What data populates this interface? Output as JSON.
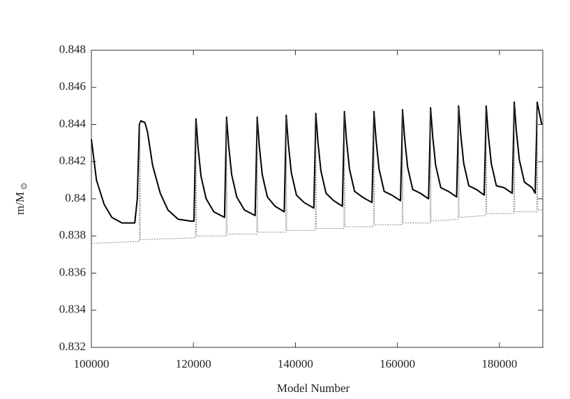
{
  "chart_data": {
    "type": "line",
    "xlabel": "Model Number",
    "ylabel": "m/M",
    "ylabel_subscript": "⊙",
    "xlim": [
      100000,
      188500
    ],
    "ylim": [
      0.832,
      0.848
    ],
    "xticks": [
      100000,
      120000,
      140000,
      160000,
      180000
    ],
    "yticks": [
      0.832,
      0.834,
      0.836,
      0.838,
      0.84,
      0.842,
      0.844,
      0.846,
      0.848
    ],
    "series": [
      {
        "color": "#000000",
        "style": "solid",
        "x": [
          100000,
          101000,
          102500,
          104000,
          106000,
          108500,
          109000,
          109400,
          109700,
          110500,
          111000,
          112000,
          113500,
          115000,
          117000,
          119500,
          120100,
          120400,
          120500,
          120900,
          121500,
          122500,
          124000,
          126100,
          126400,
          126500,
          126900,
          127500,
          128500,
          130000,
          132100,
          132400,
          132500,
          132900,
          133500,
          134500,
          136000,
          137800,
          138100,
          138200,
          138600,
          139200,
          140200,
          141700,
          143600,
          143900,
          144000,
          144400,
          145000,
          146000,
          147500,
          149200,
          149500,
          149600,
          150000,
          150600,
          151600,
          153100,
          155000,
          155300,
          155400,
          155800,
          156400,
          157400,
          158900,
          160600,
          160900,
          161000,
          161400,
          162000,
          163000,
          164500,
          166100,
          166400,
          166500,
          166900,
          167500,
          168500,
          170000,
          171600,
          171900,
          172000,
          172400,
          173000,
          174000,
          175500,
          177000,
          177300,
          177400,
          177800,
          178400,
          179400,
          180900,
          182500,
          182800,
          182900,
          183300,
          183900,
          184900,
          186400,
          187000,
          187300,
          187400,
          188300
        ],
        "values": [
          0.8432,
          0.841,
          0.8397,
          0.839,
          0.8387,
          0.8387,
          0.84,
          0.844,
          0.8442,
          0.8441,
          0.8436,
          0.8418,
          0.8403,
          0.8394,
          0.8389,
          0.8388,
          0.8388,
          0.8428,
          0.8443,
          0.8428,
          0.8412,
          0.84,
          0.8393,
          0.839,
          0.8429,
          0.8444,
          0.8429,
          0.8413,
          0.8401,
          0.8394,
          0.8391,
          0.8429,
          0.8444,
          0.8429,
          0.8413,
          0.8401,
          0.8396,
          0.8393,
          0.843,
          0.8445,
          0.843,
          0.8414,
          0.8402,
          0.8398,
          0.8395,
          0.8431,
          0.8446,
          0.8431,
          0.8415,
          0.8403,
          0.8399,
          0.8396,
          0.8432,
          0.8447,
          0.8432,
          0.8416,
          0.8404,
          0.8401,
          0.8398,
          0.8432,
          0.8447,
          0.8432,
          0.8416,
          0.8404,
          0.8402,
          0.8399,
          0.8433,
          0.8448,
          0.8433,
          0.8417,
          0.8405,
          0.8403,
          0.84,
          0.8434,
          0.8449,
          0.8434,
          0.8418,
          0.8406,
          0.8404,
          0.8401,
          0.8435,
          0.845,
          0.8435,
          0.8419,
          0.8407,
          0.8405,
          0.8402,
          0.8435,
          0.845,
          0.8435,
          0.8419,
          0.8407,
          0.8406,
          0.8403,
          0.8437,
          0.8452,
          0.8437,
          0.8421,
          0.8409,
          0.8406,
          0.8403,
          0.8437,
          0.8452,
          0.844
        ]
      },
      {
        "color": "#666666",
        "style": "dotted",
        "x": [
          100000,
          109400,
          109500,
          109600,
          120400,
          120500,
          120600,
          126400,
          126500,
          126600,
          132400,
          132500,
          132600,
          138100,
          138200,
          138300,
          143900,
          144000,
          144100,
          149500,
          149600,
          149700,
          155300,
          155400,
          155500,
          160900,
          161000,
          161100,
          166400,
          166500,
          166600,
          171900,
          172000,
          172100,
          177300,
          177400,
          177500,
          182800,
          182900,
          183000,
          187300,
          187400,
          187500,
          188500
        ],
        "values": [
          0.8376,
          0.8377,
          0.8441,
          0.8378,
          0.8379,
          0.8442,
          0.838,
          0.838,
          0.8443,
          0.8381,
          0.8381,
          0.8443,
          0.8382,
          0.8382,
          0.8444,
          0.8383,
          0.8383,
          0.8445,
          0.8384,
          0.8384,
          0.8446,
          0.8385,
          0.8385,
          0.8446,
          0.8386,
          0.8386,
          0.8447,
          0.8387,
          0.8387,
          0.8448,
          0.8388,
          0.8389,
          0.8449,
          0.839,
          0.8391,
          0.8449,
          0.8392,
          0.8392,
          0.8451,
          0.8393,
          0.8393,
          0.8451,
          0.8394,
          0.8394
        ]
      }
    ]
  }
}
